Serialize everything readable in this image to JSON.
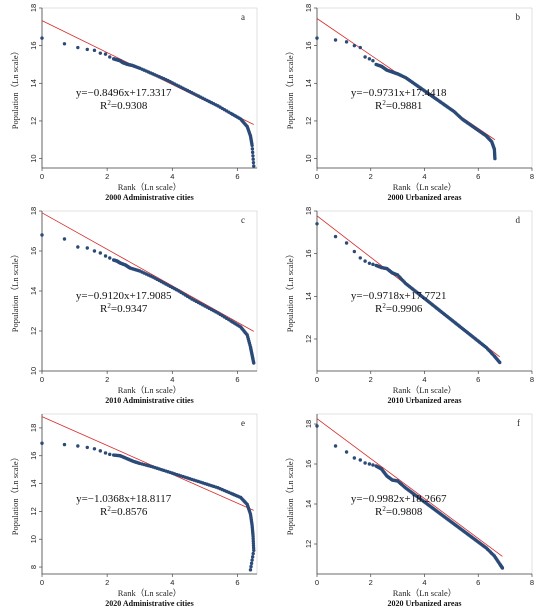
{
  "chart_data": [
    {
      "type": "scatter",
      "panel": "a",
      "caption": "2000 Administrative cities",
      "xlabel": "Rank（Ln scale）",
      "ylabel": "Population（Ln scale）",
      "xlim": [
        0,
        6.6
      ],
      "ylim": [
        9.5,
        18
      ],
      "xticks": [
        0,
        2,
        4,
        6
      ],
      "yticks": [
        10,
        12,
        14,
        16,
        18
      ],
      "equation": "y=−0.8496x+17.3317",
      "r2_prefix": "R",
      "r2_value": "=0.9308",
      "fit": {
        "slope": -0.8496,
        "intercept": 17.3317
      },
      "points": [
        [
          0,
          16.4
        ],
        [
          0.69,
          16.1
        ],
        [
          1.1,
          15.9
        ],
        [
          1.39,
          15.8
        ],
        [
          1.61,
          15.75
        ],
        [
          1.79,
          15.6
        ],
        [
          1.95,
          15.55
        ],
        [
          2.08,
          15.4
        ],
        [
          2.2,
          15.3
        ],
        [
          2.3,
          15.25
        ],
        [
          2.4,
          15.2
        ],
        [
          2.48,
          15.1
        ],
        [
          2.56,
          15.05
        ],
        [
          2.64,
          15.0
        ],
        [
          2.77,
          14.95
        ],
        [
          3.0,
          14.8
        ],
        [
          3.4,
          14.5
        ],
        [
          3.8,
          14.2
        ],
        [
          4.2,
          13.85
        ],
        [
          4.6,
          13.5
        ],
        [
          5.0,
          13.15
        ],
        [
          5.4,
          12.8
        ],
        [
          5.8,
          12.4
        ],
        [
          6.1,
          12.1
        ],
        [
          6.3,
          11.7
        ],
        [
          6.4,
          11.2
        ],
        [
          6.45,
          10.7
        ],
        [
          6.5,
          9.6
        ]
      ]
    },
    {
      "type": "scatter",
      "panel": "b",
      "caption": "2000 Urbanized areas",
      "xlabel": "Rank（Ln scale）",
      "ylabel": "Population（Ln scale）",
      "xlim": [
        0,
        8
      ],
      "ylim": [
        9.5,
        18
      ],
      "xticks": [
        0,
        2,
        4,
        6,
        8
      ],
      "yticks": [
        10,
        12,
        14,
        16,
        18
      ],
      "equation": "y=−0.9731x+17.4418",
      "r2_prefix": "R",
      "r2_value": "=0.9881",
      "fit": {
        "slope": -0.9731,
        "intercept": 17.4418
      },
      "points": [
        [
          0,
          16.4
        ],
        [
          0.69,
          16.3
        ],
        [
          1.1,
          16.2
        ],
        [
          1.39,
          16.0
        ],
        [
          1.61,
          15.9
        ],
        [
          1.79,
          15.4
        ],
        [
          1.95,
          15.3
        ],
        [
          2.08,
          15.2
        ],
        [
          2.2,
          15.0
        ],
        [
          2.4,
          14.9
        ],
        [
          2.6,
          14.7
        ],
        [
          2.8,
          14.6
        ],
        [
          3.0,
          14.5
        ],
        [
          3.3,
          14.3
        ],
        [
          3.6,
          14.0
        ],
        [
          3.9,
          13.7
        ],
        [
          4.2,
          13.4
        ],
        [
          4.5,
          13.1
        ],
        [
          4.8,
          12.8
        ],
        [
          5.1,
          12.5
        ],
        [
          5.4,
          12.1
        ],
        [
          5.7,
          11.8
        ],
        [
          6.0,
          11.5
        ],
        [
          6.3,
          11.2
        ],
        [
          6.5,
          10.9
        ],
        [
          6.6,
          10.5
        ],
        [
          6.62,
          10.0
        ]
      ]
    },
    {
      "type": "scatter",
      "panel": "c",
      "caption": "2010 Administrative cities",
      "xlabel": "Rank（Ln scale）",
      "ylabel": "Population（Ln scale）",
      "xlim": [
        0,
        6.6
      ],
      "ylim": [
        10,
        18
      ],
      "xticks": [
        0,
        2,
        4,
        6
      ],
      "yticks": [
        10,
        12,
        14,
        16,
        18
      ],
      "equation": "y=−0.9120x+17.9085",
      "r2_prefix": "R",
      "r2_value": "=0.9347",
      "fit": {
        "slope": -0.912,
        "intercept": 17.9085
      },
      "points": [
        [
          0,
          16.8
        ],
        [
          0.69,
          16.6
        ],
        [
          1.1,
          16.2
        ],
        [
          1.39,
          16.15
        ],
        [
          1.61,
          16.0
        ],
        [
          1.79,
          15.9
        ],
        [
          1.95,
          15.75
        ],
        [
          2.08,
          15.65
        ],
        [
          2.2,
          15.55
        ],
        [
          2.3,
          15.5
        ],
        [
          2.4,
          15.4
        ],
        [
          2.56,
          15.3
        ],
        [
          2.7,
          15.15
        ],
        [
          3.0,
          15.0
        ],
        [
          3.4,
          14.7
        ],
        [
          3.8,
          14.35
        ],
        [
          4.2,
          14.0
        ],
        [
          4.6,
          13.6
        ],
        [
          5.0,
          13.25
        ],
        [
          5.4,
          12.9
        ],
        [
          5.8,
          12.5
        ],
        [
          6.1,
          12.2
        ],
        [
          6.3,
          11.8
        ],
        [
          6.4,
          11.2
        ],
        [
          6.45,
          10.8
        ],
        [
          6.5,
          10.4
        ]
      ]
    },
    {
      "type": "scatter",
      "panel": "d",
      "caption": "2010 Urbanized areas",
      "xlabel": "Rank（Ln scale）",
      "ylabel": "Population（Ln scale）",
      "xlim": [
        0,
        8
      ],
      "ylim": [
        10.5,
        18
      ],
      "xticks": [
        0,
        2,
        4,
        6,
        8
      ],
      "yticks": [
        12,
        14,
        16,
        18
      ],
      "equation": "y=−0.9718x+17.7721",
      "r2_prefix": "R",
      "r2_value": "=0.9906",
      "fit": {
        "slope": -0.9718,
        "intercept": 17.7721
      },
      "points": [
        [
          0,
          17.4
        ],
        [
          0.69,
          16.8
        ],
        [
          1.1,
          16.5
        ],
        [
          1.39,
          16.1
        ],
        [
          1.61,
          15.8
        ],
        [
          1.79,
          15.65
        ],
        [
          1.95,
          15.55
        ],
        [
          2.08,
          15.5
        ],
        [
          2.2,
          15.45
        ],
        [
          2.4,
          15.35
        ],
        [
          2.6,
          15.3
        ],
        [
          2.8,
          15.1
        ],
        [
          3.0,
          15.0
        ],
        [
          3.3,
          14.6
        ],
        [
          3.6,
          14.3
        ],
        [
          3.9,
          14.0
        ],
        [
          4.2,
          13.7
        ],
        [
          4.5,
          13.4
        ],
        [
          4.8,
          13.1
        ],
        [
          5.1,
          12.8
        ],
        [
          5.4,
          12.5
        ],
        [
          5.7,
          12.2
        ],
        [
          6.0,
          11.9
        ],
        [
          6.3,
          11.6
        ],
        [
          6.6,
          11.2
        ],
        [
          6.8,
          10.9
        ]
      ]
    },
    {
      "type": "scatter",
      "panel": "e",
      "caption": "2020 Administrative cities",
      "xlabel": "Rank（Ln scale）",
      "ylabel": "Population（Ln scale）",
      "xlim": [
        0,
        6.6
      ],
      "ylim": [
        7.5,
        19
      ],
      "xticks": [
        0,
        2,
        4,
        6
      ],
      "yticks": [
        8,
        10,
        12,
        14,
        16,
        18
      ],
      "equation": "y=−1.0368x+18.8117",
      "r2_prefix": "R",
      "r2_value": "=0.8576",
      "fit": {
        "slope": -1.0368,
        "intercept": 18.8117
      },
      "points": [
        [
          0,
          16.9
        ],
        [
          0.69,
          16.8
        ],
        [
          1.1,
          16.7
        ],
        [
          1.39,
          16.6
        ],
        [
          1.61,
          16.5
        ],
        [
          1.79,
          16.35
        ],
        [
          1.95,
          16.2
        ],
        [
          2.08,
          16.1
        ],
        [
          2.2,
          16.05
        ],
        [
          2.4,
          16.0
        ],
        [
          2.6,
          15.8
        ],
        [
          2.8,
          15.6
        ],
        [
          3.0,
          15.45
        ],
        [
          3.4,
          15.2
        ],
        [
          3.8,
          14.9
        ],
        [
          4.2,
          14.6
        ],
        [
          4.6,
          14.3
        ],
        [
          5.0,
          14.0
        ],
        [
          5.4,
          13.7
        ],
        [
          5.8,
          13.3
        ],
        [
          6.1,
          13.0
        ],
        [
          6.3,
          12.5
        ],
        [
          6.4,
          11.8
        ],
        [
          6.45,
          11.0
        ],
        [
          6.48,
          10.2
        ],
        [
          6.5,
          9.2
        ],
        [
          6.4,
          7.8
        ]
      ]
    },
    {
      "type": "scatter",
      "panel": "f",
      "caption": "2020 Urbanized areas",
      "xlabel": "Rank（Ln scale）",
      "ylabel": "Population（Ln scale）",
      "xlim": [
        0,
        8
      ],
      "ylim": [
        10.5,
        18.5
      ],
      "xticks": [
        0,
        2,
        4,
        6,
        8
      ],
      "yticks": [
        12,
        14,
        16,
        18
      ],
      "equation": "y=−0.9982x+18.2667",
      "r2_prefix": "R",
      "r2_value": "=0.9808",
      "fit": {
        "slope": -0.9982,
        "intercept": 18.2667
      },
      "points": [
        [
          0,
          17.9
        ],
        [
          0.69,
          16.9
        ],
        [
          1.1,
          16.6
        ],
        [
          1.39,
          16.3
        ],
        [
          1.61,
          16.2
        ],
        [
          1.79,
          16.05
        ],
        [
          1.95,
          16.0
        ],
        [
          2.08,
          15.95
        ],
        [
          2.2,
          15.9
        ],
        [
          2.4,
          15.75
        ],
        [
          2.6,
          15.4
        ],
        [
          2.8,
          15.2
        ],
        [
          3.0,
          15.15
        ],
        [
          3.3,
          14.8
        ],
        [
          3.6,
          14.5
        ],
        [
          3.9,
          14.2
        ],
        [
          4.2,
          13.9
        ],
        [
          4.5,
          13.6
        ],
        [
          4.8,
          13.3
        ],
        [
          5.1,
          13.0
        ],
        [
          5.4,
          12.7
        ],
        [
          5.7,
          12.4
        ],
        [
          6.0,
          12.1
        ],
        [
          6.3,
          11.8
        ],
        [
          6.6,
          11.4
        ],
        [
          6.8,
          11.0
        ],
        [
          6.9,
          10.8
        ]
      ]
    }
  ],
  "colors": {
    "points": "#2b4a78",
    "fit": "#d62a2a",
    "axis": "#444444",
    "frame": "#cccccc"
  }
}
